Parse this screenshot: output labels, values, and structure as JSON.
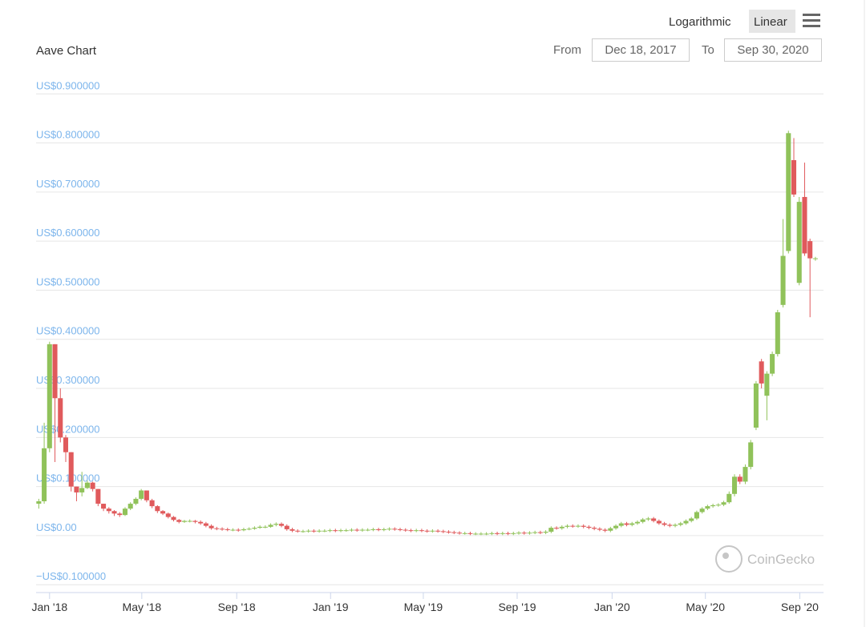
{
  "controls": {
    "scale_options": [
      "Logarithmic",
      "Linear"
    ],
    "from_label": "From",
    "from_date": "Dec 18, 2017",
    "to_label": "To",
    "to_date": "Sep 30, 2020"
  },
  "watermark": "CoinGecko",
  "chart_data": {
    "type": "candlestick",
    "title": "Aave Chart",
    "up_color": "#90c25a",
    "down_color": "#e05a5c",
    "grid": true,
    "xlim": [
      -0.5,
      145.5
    ],
    "ylim": [
      -0.116,
      0.92
    ],
    "xticks": [
      {
        "value": 2,
        "label": "Jan '18"
      },
      {
        "value": 19.1,
        "label": "May '18"
      },
      {
        "value": 36.7,
        "label": "Sep '18"
      },
      {
        "value": 54.1,
        "label": "Jan '19"
      },
      {
        "value": 71.3,
        "label": "May '19"
      },
      {
        "value": 88.7,
        "label": "Sep '19"
      },
      {
        "value": 106.3,
        "label": "Jan '20"
      },
      {
        "value": 123.6,
        "label": "May '20"
      },
      {
        "value": 141.1,
        "label": "Sep '20"
      }
    ],
    "yticks": [
      {
        "value": -0.1,
        "label": "−US$0.100000"
      },
      {
        "value": 0,
        "label": "US$0.00"
      },
      {
        "value": 0.1,
        "label": "US$0.100000"
      },
      {
        "value": 0.2,
        "label": "US$0.200000"
      },
      {
        "value": 0.3,
        "label": "US$0.300000"
      },
      {
        "value": 0.4,
        "label": "US$0.400000"
      },
      {
        "value": 0.5,
        "label": "US$0.500000"
      },
      {
        "value": 0.6,
        "label": "US$0.600000"
      },
      {
        "value": 0.7,
        "label": "US$0.700000"
      },
      {
        "value": 0.8,
        "label": "US$0.800000"
      },
      {
        "value": 0.9,
        "label": "US$0.900000"
      }
    ],
    "x": [
      0,
      1,
      2,
      3,
      4,
      5,
      6,
      7,
      8,
      9,
      10,
      11,
      12,
      13,
      14,
      15,
      16,
      17,
      18,
      19,
      20,
      21,
      22,
      23,
      24,
      25,
      26,
      27,
      28,
      29,
      30,
      31,
      32,
      33,
      34,
      35,
      36,
      37,
      38,
      39,
      40,
      41,
      42,
      43,
      44,
      45,
      46,
      47,
      48,
      49,
      50,
      51,
      52,
      53,
      54,
      55,
      56,
      57,
      58,
      59,
      60,
      61,
      62,
      63,
      64,
      65,
      66,
      67,
      68,
      69,
      70,
      71,
      72,
      73,
      74,
      75,
      76,
      77,
      78,
      79,
      80,
      81,
      82,
      83,
      84,
      85,
      86,
      87,
      88,
      89,
      90,
      91,
      92,
      93,
      94,
      95,
      96,
      97,
      98,
      99,
      100,
      101,
      102,
      103,
      104,
      105,
      106,
      107,
      108,
      109,
      110,
      111,
      112,
      113,
      114,
      115,
      116,
      117,
      118,
      119,
      120,
      121,
      122,
      123,
      124,
      125,
      126,
      127,
      128,
      129,
      130,
      131,
      132,
      133,
      134,
      135,
      136,
      137,
      138,
      139,
      140,
      141,
      142,
      143,
      144
    ],
    "open": [
      0.065,
      0.07,
      0.178,
      0.39,
      0.28,
      0.2,
      0.17,
      0.1,
      0.088,
      0.097,
      0.108,
      0.095,
      0.065,
      0.055,
      0.05,
      0.045,
      0.042,
      0.055,
      0.065,
      0.075,
      0.092,
      0.072,
      0.06,
      0.05,
      0.045,
      0.038,
      0.032,
      0.028,
      0.03,
      0.03,
      0.028,
      0.025,
      0.02,
      0.015,
      0.014,
      0.013,
      0.012,
      0.012,
      0.011,
      0.013,
      0.014,
      0.016,
      0.018,
      0.018,
      0.022,
      0.024,
      0.02,
      0.013,
      0.01,
      0.009,
      0.009,
      0.01,
      0.009,
      0.01,
      0.01,
      0.011,
      0.01,
      0.011,
      0.011,
      0.012,
      0.011,
      0.012,
      0.012,
      0.013,
      0.012,
      0.013,
      0.014,
      0.013,
      0.012,
      0.011,
      0.01,
      0.011,
      0.01,
      0.009,
      0.01,
      0.009,
      0.008,
      0.007,
      0.006,
      0.005,
      0.005,
      0.004,
      0.004,
      0.004,
      0.004,
      0.005,
      0.004,
      0.005,
      0.004,
      0.005,
      0.006,
      0.005,
      0.006,
      0.007,
      0.006,
      0.008,
      0.016,
      0.015,
      0.018,
      0.02,
      0.019,
      0.02,
      0.018,
      0.016,
      0.014,
      0.012,
      0.01,
      0.015,
      0.02,
      0.025,
      0.022,
      0.025,
      0.028,
      0.033,
      0.035,
      0.03,
      0.025,
      0.022,
      0.02,
      0.022,
      0.025,
      0.03,
      0.035,
      0.048,
      0.055,
      0.06,
      0.062,
      0.063,
      0.068,
      0.085,
      0.12,
      0.11,
      0.14,
      0.22,
      0.355,
      0.285,
      0.33,
      0.37,
      0.47,
      0.58,
      0.765,
      0.515,
      0.69,
      0.6,
      0.565
    ],
    "high": [
      0.075,
      0.23,
      0.395,
      0.39,
      0.3,
      0.205,
      0.17,
      0.1,
      0.13,
      0.112,
      0.11,
      0.095,
      0.065,
      0.058,
      0.052,
      0.048,
      0.058,
      0.068,
      0.078,
      0.095,
      0.092,
      0.075,
      0.062,
      0.052,
      0.047,
      0.04,
      0.034,
      0.032,
      0.033,
      0.032,
      0.031,
      0.028,
      0.023,
      0.018,
      0.017,
      0.016,
      0.015,
      0.015,
      0.016,
      0.017,
      0.019,
      0.021,
      0.021,
      0.025,
      0.027,
      0.027,
      0.023,
      0.016,
      0.013,
      0.012,
      0.013,
      0.013,
      0.013,
      0.013,
      0.014,
      0.014,
      0.014,
      0.014,
      0.015,
      0.015,
      0.015,
      0.015,
      0.016,
      0.016,
      0.016,
      0.017,
      0.017,
      0.016,
      0.015,
      0.014,
      0.014,
      0.014,
      0.013,
      0.013,
      0.013,
      0.012,
      0.011,
      0.01,
      0.009,
      0.008,
      0.008,
      0.007,
      0.007,
      0.007,
      0.008,
      0.008,
      0.008,
      0.008,
      0.008,
      0.009,
      0.009,
      0.009,
      0.01,
      0.01,
      0.011,
      0.019,
      0.019,
      0.021,
      0.023,
      0.023,
      0.023,
      0.023,
      0.021,
      0.019,
      0.017,
      0.015,
      0.018,
      0.023,
      0.028,
      0.028,
      0.028,
      0.031,
      0.036,
      0.038,
      0.038,
      0.033,
      0.028,
      0.025,
      0.025,
      0.028,
      0.033,
      0.038,
      0.051,
      0.058,
      0.063,
      0.065,
      0.066,
      0.071,
      0.09,
      0.125,
      0.125,
      0.145,
      0.195,
      0.315,
      0.36,
      0.335,
      0.375,
      0.46,
      0.645,
      0.825,
      0.81,
      0.69,
      0.76,
      0.605,
      0.568
    ],
    "low": [
      0.055,
      0.065,
      0.17,
      0.15,
      0.19,
      0.15,
      0.09,
      0.07,
      0.08,
      0.095,
      0.09,
      0.06,
      0.05,
      0.045,
      0.04,
      0.038,
      0.04,
      0.052,
      0.062,
      0.072,
      0.068,
      0.056,
      0.046,
      0.042,
      0.035,
      0.029,
      0.025,
      0.026,
      0.027,
      0.025,
      0.022,
      0.017,
      0.012,
      0.011,
      0.01,
      0.009,
      0.009,
      0.008,
      0.009,
      0.011,
      0.012,
      0.014,
      0.015,
      0.016,
      0.019,
      0.017,
      0.01,
      0.007,
      0.006,
      0.006,
      0.006,
      0.006,
      0.006,
      0.007,
      0.007,
      0.007,
      0.007,
      0.008,
      0.008,
      0.008,
      0.008,
      0.009,
      0.009,
      0.009,
      0.009,
      0.01,
      0.01,
      0.009,
      0.008,
      0.007,
      0.007,
      0.007,
      0.006,
      0.006,
      0.006,
      0.005,
      0.004,
      0.003,
      0.002,
      0.002,
      0.001,
      0.001,
      0.001,
      0.001,
      0.001,
      0.001,
      0.001,
      0.001,
      0.001,
      0.002,
      0.002,
      0.002,
      0.003,
      0.003,
      0.003,
      0.005,
      0.012,
      0.012,
      0.015,
      0.016,
      0.016,
      0.015,
      0.013,
      0.011,
      0.009,
      0.007,
      0.007,
      0.012,
      0.017,
      0.019,
      0.019,
      0.022,
      0.025,
      0.03,
      0.027,
      0.022,
      0.019,
      0.017,
      0.017,
      0.019,
      0.022,
      0.027,
      0.032,
      0.045,
      0.052,
      0.057,
      0.059,
      0.06,
      0.065,
      0.08,
      0.105,
      0.105,
      0.135,
      0.215,
      0.3,
      0.235,
      0.325,
      0.365,
      0.465,
      0.575,
      0.69,
      0.51,
      0.57,
      0.445,
      0.56
    ],
    "close": [
      0.07,
      0.178,
      0.39,
      0.28,
      0.2,
      0.17,
      0.1,
      0.088,
      0.097,
      0.108,
      0.095,
      0.065,
      0.055,
      0.05,
      0.045,
      0.042,
      0.055,
      0.065,
      0.075,
      0.092,
      0.072,
      0.06,
      0.05,
      0.045,
      0.038,
      0.032,
      0.028,
      0.03,
      0.03,
      0.028,
      0.025,
      0.02,
      0.015,
      0.014,
      0.013,
      0.012,
      0.012,
      0.011,
      0.013,
      0.014,
      0.016,
      0.018,
      0.018,
      0.022,
      0.024,
      0.02,
      0.013,
      0.01,
      0.009,
      0.009,
      0.01,
      0.009,
      0.01,
      0.01,
      0.011,
      0.01,
      0.011,
      0.011,
      0.012,
      0.011,
      0.012,
      0.012,
      0.013,
      0.012,
      0.013,
      0.014,
      0.013,
      0.012,
      0.011,
      0.01,
      0.011,
      0.01,
      0.009,
      0.01,
      0.009,
      0.008,
      0.007,
      0.006,
      0.005,
      0.005,
      0.004,
      0.004,
      0.004,
      0.004,
      0.005,
      0.004,
      0.005,
      0.004,
      0.005,
      0.006,
      0.005,
      0.006,
      0.007,
      0.006,
      0.008,
      0.016,
      0.015,
      0.018,
      0.02,
      0.019,
      0.02,
      0.018,
      0.016,
      0.014,
      0.012,
      0.01,
      0.015,
      0.02,
      0.025,
      0.022,
      0.025,
      0.028,
      0.033,
      0.035,
      0.03,
      0.025,
      0.022,
      0.02,
      0.022,
      0.025,
      0.03,
      0.035,
      0.048,
      0.055,
      0.06,
      0.062,
      0.063,
      0.068,
      0.085,
      0.12,
      0.11,
      0.14,
      0.19,
      0.31,
      0.31,
      0.33,
      0.37,
      0.455,
      0.57,
      0.82,
      0.695,
      0.68,
      0.575,
      0.565,
      0.565
    ]
  }
}
